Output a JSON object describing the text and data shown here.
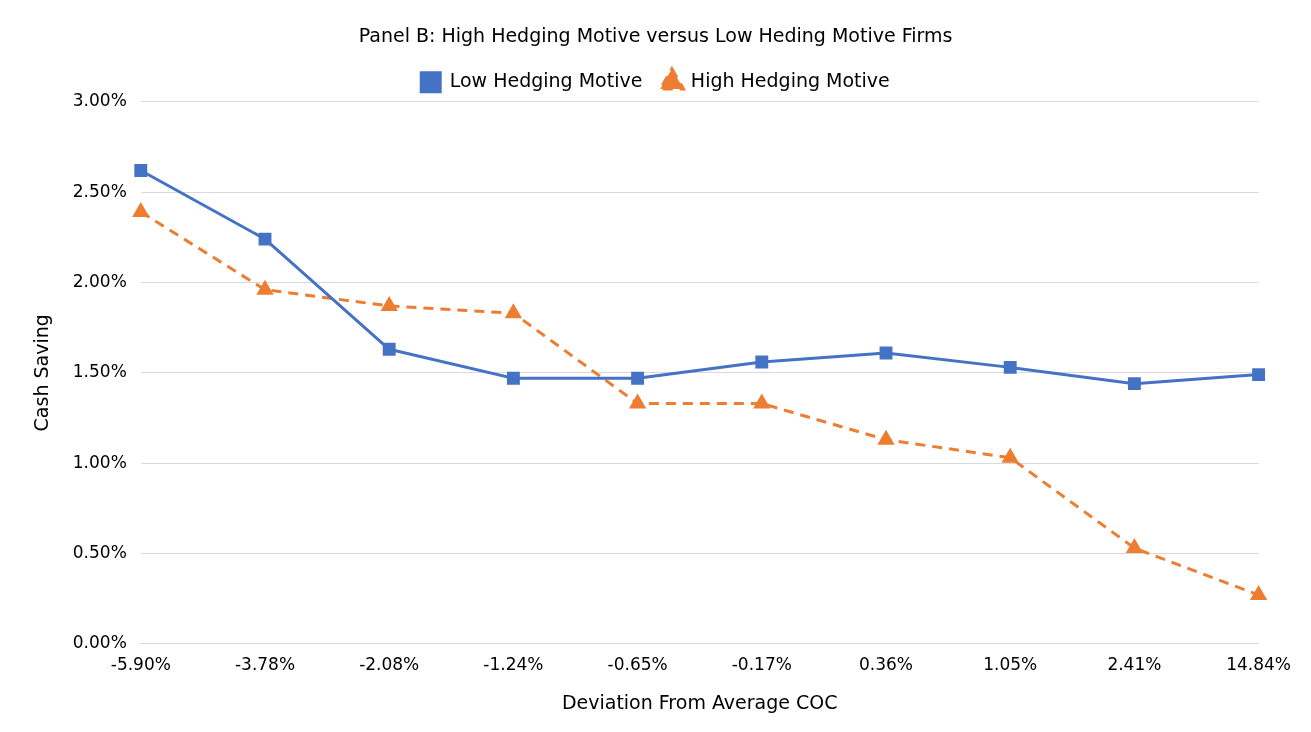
{
  "chart_data": {
    "type": "line",
    "title": "Panel B: High Hedging Motive versus Low Heding Motive Firms",
    "xlabel": "Deviation From Average COC",
    "ylabel": "Cash Saving",
    "categories": [
      "-5.90%",
      "-3.78%",
      "-2.08%",
      "-1.24%",
      "-0.65%",
      "-0.17%",
      "0.36%",
      "1.05%",
      "2.41%",
      "14.84%"
    ],
    "series": [
      {
        "name": "Low Hedging Motive",
        "color": "#4472c4",
        "marker": "square",
        "line_style": "solid",
        "values": [
          2.62,
          2.24,
          1.63,
          1.47,
          1.47,
          1.56,
          1.61,
          1.53,
          1.44,
          1.49
        ]
      },
      {
        "name": "High Hedging Motive",
        "color": "#ed7d31",
        "marker": "triangle",
        "line_style": "dashed",
        "values": [
          2.39,
          1.96,
          1.87,
          1.83,
          1.33,
          1.33,
          1.13,
          1.03,
          0.53,
          0.27
        ]
      }
    ],
    "ylim": [
      0,
      3
    ],
    "yticks": [
      {
        "value": 0,
        "label": "0.00%"
      },
      {
        "value": 0.5,
        "label": "0.50%"
      },
      {
        "value": 1,
        "label": "1.00%"
      },
      {
        "value": 1.5,
        "label": "1.50%"
      },
      {
        "value": 2,
        "label": "2.00%"
      },
      {
        "value": 2.5,
        "label": "2.50%"
      },
      {
        "value": 3,
        "label": "3.00%"
      }
    ],
    "grid": "y",
    "legend": "top"
  }
}
